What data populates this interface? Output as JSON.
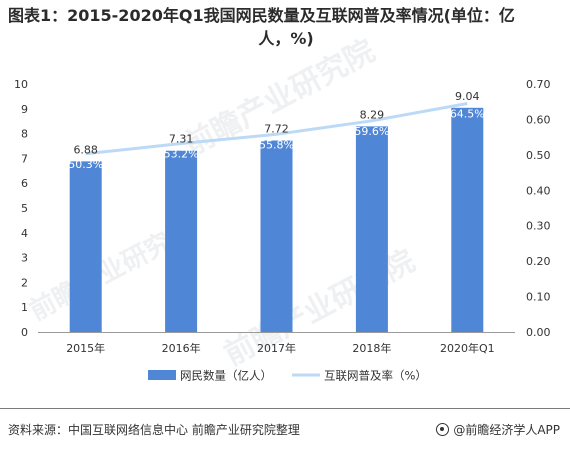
{
  "title_line1": "图表1：2015-2020年Q1我国网民数量及互联网普及率情况(单位：亿",
  "title_line2": "人，%)",
  "footer_source": "资料来源：中国互联网络信息中心 前瞻产业研究院整理",
  "brand": "@前瞻经济学人APP",
  "watermark": "前瞻产业研究院",
  "colors": {
    "bar": "#4f86d6",
    "line": "#bcdaf5",
    "text": "#333333",
    "axis": "#999999"
  },
  "chart_data": {
    "type": "bar",
    "categories": [
      "2015年",
      "2016年",
      "2017年",
      "2018年",
      "2020年Q1"
    ],
    "series": [
      {
        "name": "网民数量（亿人）",
        "type": "bar",
        "axis": "left",
        "values": [
          6.88,
          7.31,
          7.72,
          8.29,
          9.04
        ],
        "value_labels": [
          "6.88",
          "7.31",
          "7.72",
          "8.29",
          "9.04"
        ]
      },
      {
        "name": "互联网普及率（%）",
        "type": "line",
        "axis": "right",
        "values": [
          0.503,
          0.532,
          0.558,
          0.596,
          0.645
        ],
        "value_labels": [
          "50.3%",
          "53.2%",
          "55.8%",
          "59.6%",
          "64.5%"
        ]
      }
    ],
    "left_axis": {
      "min": 0,
      "max": 10,
      "ticks": [
        "0",
        "1",
        "2",
        "3",
        "4",
        "5",
        "6",
        "7",
        "8",
        "9",
        "10"
      ]
    },
    "right_axis": {
      "min": 0,
      "max": 0.7,
      "ticks": [
        "0.00",
        "0.10",
        "0.20",
        "0.30",
        "0.40",
        "0.50",
        "0.60",
        "0.70"
      ]
    },
    "legend": "bottom-center",
    "grid": false
  }
}
